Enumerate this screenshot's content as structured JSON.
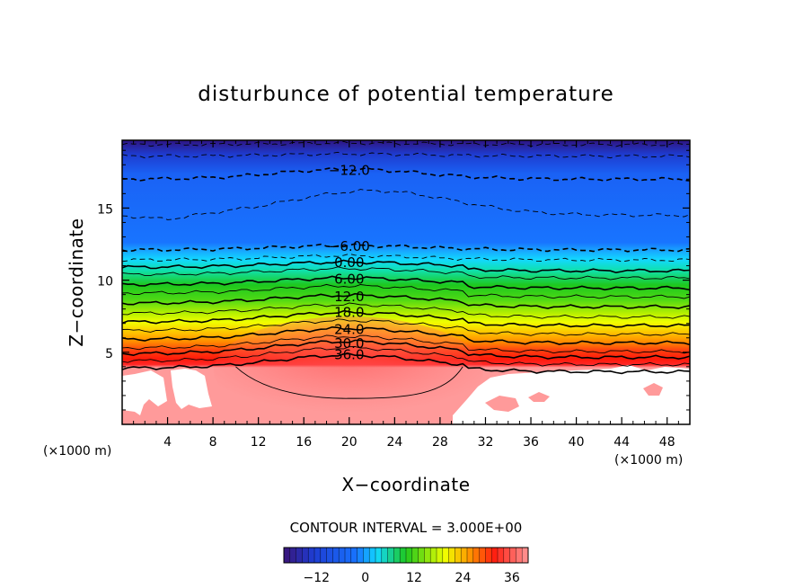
{
  "chart_data": {
    "type": "contour",
    "title": "disturbunce of potential temperature",
    "xlabel": "X−coordinate",
    "ylabel": "Z−coordinate",
    "x_unit_left": "(×1000 m)",
    "x_unit_right": "(×1000 m)",
    "xlim": [
      0,
      50
    ],
    "ylim": [
      0,
      19.7
    ],
    "x_ticks": [
      4,
      8,
      12,
      16,
      20,
      24,
      28,
      32,
      36,
      40,
      44,
      48
    ],
    "y_ticks": [
      5,
      10,
      15
    ],
    "contour_interval_text": "CONTOUR INTERVAL = 3.000E+00",
    "contour_interval": 3.0,
    "contour_labels": [
      "−12.0",
      "−6.00",
      "0.00",
      "6.00",
      "12.0",
      "18.0",
      "24.0",
      "30.0",
      "36.0"
    ],
    "levels": [
      {
        "value": -18,
        "base_z": 19.4,
        "amp": 0.1
      },
      {
        "value": -15,
        "base_z": 18.6,
        "amp": 0.15
      },
      {
        "value": -12,
        "base_z": 17.0,
        "amp": 0.7,
        "label": "−12.0"
      },
      {
        "value": -9,
        "base_z": 14.5,
        "amp": 1.7
      },
      {
        "value": -6,
        "base_z": 12.1,
        "amp": 0.3,
        "label": "−6.00"
      },
      {
        "value": -3,
        "base_z": 11.4,
        "amp": 0.3
      },
      {
        "value": 0,
        "base_z": 10.9,
        "amp": 0.35,
        "label": "0.00"
      },
      {
        "value": 3,
        "base_z": 10.4,
        "amp": 0.4
      },
      {
        "value": 6,
        "base_z": 9.7,
        "amp": 0.45,
        "label": "6.00"
      },
      {
        "value": 9,
        "base_z": 9.1,
        "amp": 0.5
      },
      {
        "value": 12,
        "base_z": 8.4,
        "amp": 0.55,
        "label": "12.0"
      },
      {
        "value": 15,
        "base_z": 7.7,
        "amp": 0.6
      },
      {
        "value": 18,
        "base_z": 7.1,
        "amp": 0.65,
        "label": "18.0"
      },
      {
        "value": 21,
        "base_z": 6.5,
        "amp": 0.7
      },
      {
        "value": 24,
        "base_z": 5.9,
        "amp": 0.75,
        "label": "24.0"
      },
      {
        "value": 27,
        "base_z": 5.3,
        "amp": 0.8
      },
      {
        "value": 30,
        "base_z": 4.9,
        "amp": 0.85,
        "label": "30.0"
      },
      {
        "value": 33,
        "base_z": 4.4,
        "amp": 0.9
      },
      {
        "value": 36,
        "base_z": 3.9,
        "amp": 0.9,
        "label": "36.0"
      }
    ],
    "inner_contour": {
      "value": 39,
      "x_range": [
        10,
        30
      ],
      "z_top": 4.0,
      "z_bottom": 1.8
    },
    "colorbar": {
      "min": -20,
      "max": 40,
      "ticks": [
        -12,
        0,
        12,
        24,
        36
      ]
    },
    "colors": {
      "top": "#3a1a8c",
      "blue": "#1874ff",
      "cyan": "#12d8ff",
      "green": "#1ec81e",
      "yellow": "#f0ff00",
      "orange": "#ff9900",
      "red": "#ff1a0a",
      "pink": "#ff9a9a",
      "white": "#ffffff"
    }
  }
}
